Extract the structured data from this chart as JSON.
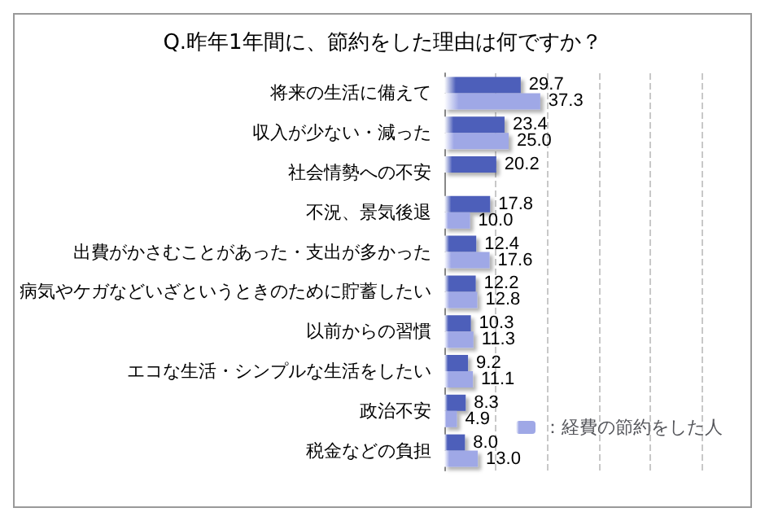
{
  "chart_data": {
    "type": "bar",
    "orientation": "horizontal",
    "title": "Q.昨年1年間に、節約をした理由は何ですか？",
    "categories": [
      "将来の生活に備えて",
      "収入が少ない・減った",
      "社会情勢への不安",
      "不況、景気後退",
      "出費がかさむことがあった・支出が多かった",
      "病気やケガなどいざというときのために貯蓄したい",
      "以前からの習慣",
      "エコな生活・シンプルな生活をしたい",
      "政治不安",
      "税金などの負担"
    ],
    "series": [
      {
        "color": "#4d5fba",
        "values": [
          29.7,
          23.4,
          20.2,
          17.8,
          12.4,
          12.2,
          10.3,
          9.2,
          8.3,
          8.0
        ],
        "value_labels": [
          "29.7",
          "23.4",
          "20.2",
          "17.8",
          "12.4",
          "12.2",
          "10.3",
          "9.2",
          "8.3",
          "8.0"
        ]
      },
      {
        "name": "：経費の節約をした人",
        "color": "#9fa8e6",
        "values": [
          37.3,
          25.0,
          null,
          10.0,
          17.6,
          12.8,
          11.3,
          11.1,
          4.9,
          13.0
        ],
        "value_labels": [
          "37.3",
          "25.0",
          null,
          "10.0",
          "17.6",
          "12.8",
          "11.3",
          "11.1",
          "4.9",
          "13.0"
        ]
      }
    ],
    "xlim": [
      0,
      100
    ],
    "xticks": [
      {
        "value": 0,
        "label": null
      },
      {
        "value": 20,
        "label": null
      },
      {
        "value": 40,
        "label": null
      },
      {
        "value": 60,
        "label": null
      },
      {
        "value": 80,
        "label": null
      },
      {
        "value": 100,
        "label": null
      }
    ],
    "tick_labels": "y",
    "grid": "x",
    "legend": "bottom right"
  }
}
